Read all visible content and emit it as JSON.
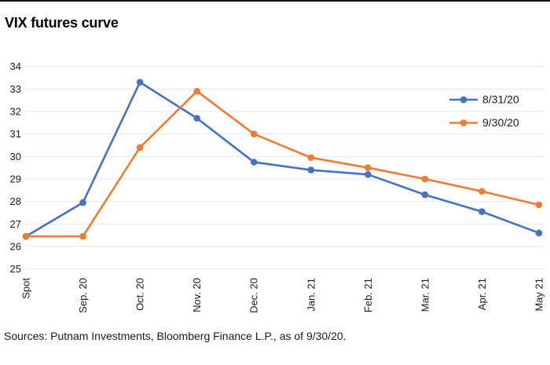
{
  "page": {
    "title": "VIX futures curve",
    "source_note": "Sources: Putnam Investments, Bloomberg Finance L.P., as of 9/30/20."
  },
  "chart_data": {
    "type": "line",
    "title": "VIX futures curve",
    "categories": [
      "Spot",
      "Sep. 20",
      "Oct. 20",
      "Nov. 20",
      "Dec. 20",
      "Jan. 21",
      "Feb. 21",
      "Mar. 21",
      "Apr. 21",
      "May 21"
    ],
    "series": [
      {
        "name": "8/31/20",
        "color": "#4472C4",
        "values": [
          26.45,
          27.95,
          33.3,
          31.7,
          29.75,
          29.4,
          29.2,
          28.3,
          27.55,
          26.6
        ]
      },
      {
        "name": "9/30/20",
        "color": "#ED7D31",
        "values": [
          26.45,
          26.45,
          30.4,
          32.9,
          31.0,
          29.95,
          29.5,
          29.0,
          28.45,
          27.85
        ]
      }
    ],
    "y_ticks": [
      34,
      33,
      32,
      31,
      30,
      29,
      28,
      27,
      26,
      25
    ],
    "ylim": [
      25,
      34
    ],
    "xlabel": "",
    "ylabel": "",
    "grid": "horizontal",
    "legend_position": "upper-right",
    "marker": "circle",
    "colors": {
      "grid": "#e7e7e7",
      "axis_text": "#1a1a1a",
      "top_rule": "#111111"
    }
  }
}
